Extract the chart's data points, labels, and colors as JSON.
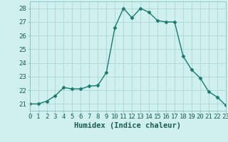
{
  "x": [
    0,
    1,
    2,
    3,
    4,
    5,
    6,
    7,
    8,
    9,
    10,
    11,
    12,
    13,
    14,
    15,
    16,
    17,
    18,
    19,
    20,
    21,
    22,
    23
  ],
  "y": [
    21.0,
    21.0,
    21.2,
    21.6,
    22.2,
    22.1,
    22.1,
    22.3,
    22.35,
    23.3,
    26.6,
    28.0,
    27.3,
    28.0,
    27.7,
    27.1,
    27.0,
    27.0,
    24.5,
    23.5,
    22.9,
    21.9,
    21.5,
    20.9
  ],
  "line_color": "#1a7a6e",
  "marker": "D",
  "marker_size": 2.5,
  "line_width": 1.0,
  "bg_color": "#cff0ee",
  "grid_color": "#aad8d4",
  "xlabel": "Humidex (Indice chaleur)",
  "xlim": [
    0,
    23
  ],
  "ylim": [
    20.5,
    28.5
  ],
  "yticks": [
    21,
    22,
    23,
    24,
    25,
    26,
    27,
    28
  ],
  "xticks": [
    0,
    1,
    2,
    3,
    4,
    5,
    6,
    7,
    8,
    9,
    10,
    11,
    12,
    13,
    14,
    15,
    16,
    17,
    18,
    19,
    20,
    21,
    22,
    23
  ],
  "xlabel_fontsize": 7.5,
  "tick_fontsize": 6.5,
  "tick_color": "#1a5c52"
}
